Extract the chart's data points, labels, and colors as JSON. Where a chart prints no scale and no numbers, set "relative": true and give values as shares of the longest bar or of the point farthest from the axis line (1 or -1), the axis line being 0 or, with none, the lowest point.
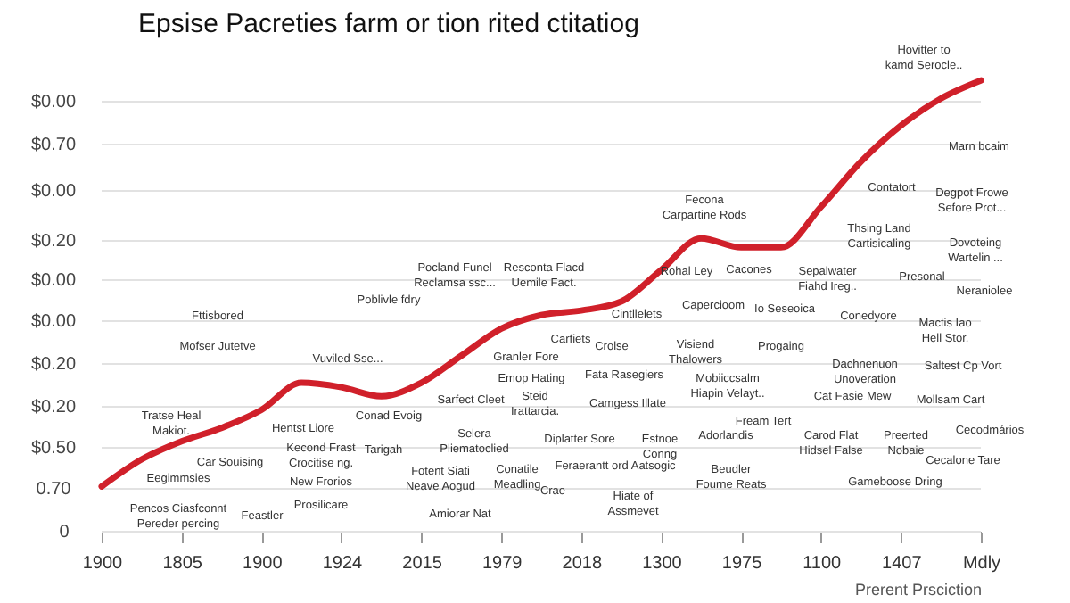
{
  "chart_data": {
    "type": "line",
    "title": "Epsise Pacreties farm or tion rited ctitatiog",
    "xlabel": "Prerent Prsciction",
    "relative": true,
    "categories": [
      "1900",
      null,
      "1805",
      null,
      "1900",
      null,
      "1924",
      null,
      "2015",
      null,
      "1979",
      null,
      "2018",
      null,
      "1300",
      null,
      "1975",
      null,
      "1100",
      null,
      "1407",
      null,
      "Mdly"
    ],
    "series": [
      {
        "color": "#d0202a",
        "values": [
          0.1,
          0.16,
          0.2,
          0.23,
          0.27,
          0.33,
          0.32,
          0.3,
          0.33,
          0.39,
          0.45,
          0.48,
          0.49,
          0.51,
          0.58,
          0.65,
          0.63,
          0.63,
          0.72,
          0.82,
          0.9,
          0.96,
          1
        ]
      }
    ],
    "grid": "y",
    "line_style": "solid",
    "annotations": [
      "$0.00",
      "$0.70",
      "$0.00",
      "$0.20",
      "$0.00",
      "$0.00",
      "$0.20",
      "$0.20",
      "$0.50",
      "0.70",
      "0",
      "Hovitter to\nkamd Serocle..",
      "Marn bcaim",
      "Contatort",
      "Degpot Frowe\nSefore Prot...",
      "Thsing Land\nCartisicaling",
      "Dovoteing\nWartelin ...",
      "Fecona\nCarpartine Rods",
      "Rohal Ley",
      "Cacones",
      "Sepalwater\nFiahd Ireg..",
      "Presonal",
      "Neraniolee",
      "Pocland Funel\nReclamsa ssc...",
      "Resconta Flacd\nUemile Fact.",
      "Poblivle fdry",
      "Fttisbored",
      "Mofser Jutetve",
      "Vuviled Sse...",
      "Cintllelets",
      "Capercioom",
      "Io Seseoica",
      "Conedyore",
      "Mactis Iao\nHell Stor.",
      "Carfiets",
      "Granler Fore",
      "Crolse",
      "Visiend\nThalowers",
      "Progaing",
      "Dachnenuon\nUnoveration",
      "Saltest Cp Vort",
      "Emop Hating",
      "Fata Rasegiers",
      "Mobiiccsalm\nHiapin Velayt..",
      "Cat Fasie Mew",
      "Mollsam Cart",
      "Sarfect Cleet",
      "Steid\nIrattarcia.",
      "Camgess Illate",
      "Tratse Heal\nMakiot.",
      "Hentst Liore",
      "Conad Evoig",
      "Selera\nPliematoclied",
      "Diplatter Sore",
      "Estnoe\nConng",
      "Adorlandis",
      "Fream Tert",
      "Carod Flat\nHidsel False",
      "Preerted\nNobaie",
      "Cecodmários",
      "Car Souising",
      "Kecond Frast\nCrocitise ng.",
      "Tarigah",
      "Fotent Siati\nNeave Aogud",
      "Conatile\nMeadling",
      "Feraerantt ord Aatsogic",
      "Beudler\nFourne Reats",
      "Cecalone Tare",
      "Eegimmsies",
      "New Frorios",
      "Gameboose Dring",
      "Pencos Ciasfconnt\nPereder percing",
      "Feastler",
      "Prosilicare",
      "Amiorar Nat",
      "Crae",
      "Hiate of\nAssmevet"
    ]
  }
}
